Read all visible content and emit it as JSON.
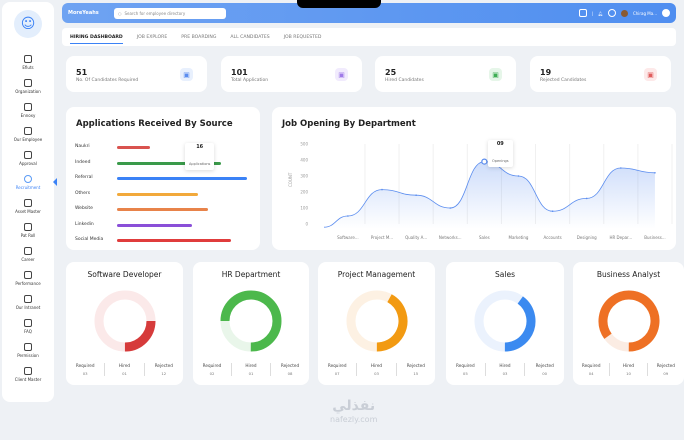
{
  "header": {
    "brand": "MoreYeahs",
    "search_placeholder": "Search for employee directory",
    "user": "Chirag Ma..."
  },
  "sidebar": [
    {
      "label": "Efiuts"
    },
    {
      "label": "Organization"
    },
    {
      "label": "Ennoxy"
    },
    {
      "label": "Our Employee"
    },
    {
      "label": "Approval"
    },
    {
      "label": "Recruitment",
      "active": true
    },
    {
      "label": "Asset Master"
    },
    {
      "label": "Pat Roll"
    },
    {
      "label": "Career"
    },
    {
      "label": "Performance"
    },
    {
      "label": "Our Intranet"
    },
    {
      "label": "FAQ"
    },
    {
      "label": "Permission"
    },
    {
      "label": "Client Master"
    }
  ],
  "tabs": [
    {
      "label": "HIRING DASHBOARD",
      "active": true
    },
    {
      "label": "JOB EXPLORE"
    },
    {
      "label": "PRE BOARDING"
    },
    {
      "label": "ALL CANDIDATES"
    },
    {
      "label": "JOB REQUESTED"
    }
  ],
  "stats": [
    {
      "value": "51",
      "label": "No. Of Candidates Required",
      "color": "#5b8def",
      "bg": "#e8f0fd"
    },
    {
      "value": "101",
      "label": "Total Application",
      "color": "#a07be8",
      "bg": "#f1ebfd"
    },
    {
      "value": "25",
      "label": "Hired Candidates",
      "color": "#3fae55",
      "bg": "#e6f6e9"
    },
    {
      "value": "19",
      "label": "Rejected Candidates",
      "color": "#e05d5d",
      "bg": "#fde9e9"
    }
  ],
  "sources": {
    "title": "Applications Received By Source",
    "max": 20,
    "tooltip": {
      "value": "16",
      "label": "Applications"
    },
    "items": [
      {
        "label": "Naukri",
        "value": 5,
        "color": "#d9534f"
      },
      {
        "label": "Indeed",
        "value": 16,
        "color": "#3a9a4a"
      },
      {
        "label": "Referral",
        "value": 20,
        "color": "#3b82f6"
      },
      {
        "label": "Others",
        "value": 12.5,
        "color": "#f2a93b"
      },
      {
        "label": "Website",
        "value": 14,
        "color": "#e8834a"
      },
      {
        "label": "Linkedin",
        "value": 11.5,
        "color": "#8a4fd8"
      },
      {
        "label": "Social Media",
        "value": 17.5,
        "color": "#e03c3c"
      }
    ]
  },
  "chart_data": {
    "type": "area",
    "title": "Job Opening By Department",
    "ylabel": "COUNT",
    "ylim": [
      0,
      500
    ],
    "yticks": [
      "500",
      "400",
      "300",
      "200",
      "100",
      "0"
    ],
    "categories": [
      "Software...",
      "Project M...",
      "Quality A...",
      "Networks...",
      "Sales",
      "Marketing",
      "Accounts",
      "Designing",
      "HR Depar...",
      "Business..."
    ],
    "values": [
      50,
      215,
      180,
      100,
      390,
      300,
      80,
      160,
      350,
      320
    ],
    "tooltip": {
      "value": "09",
      "label": "Openings"
    },
    "color": "#5b8def"
  },
  "departments": [
    {
      "title": "Software Developer",
      "fraction": 0.25,
      "color": "#d63b3b",
      "track": "#fbe9e9",
      "required": "03",
      "hired": "01",
      "rejected": "12"
    },
    {
      "title": "HR Department",
      "fraction": 0.75,
      "color": "#4cb84c",
      "track": "#e9f6ea",
      "required": "02",
      "hired": "01",
      "rejected": "08"
    },
    {
      "title": "Project Management",
      "fraction": 0.42,
      "color": "#f29a12",
      "track": "#fdf1e3",
      "required": "07",
      "hired": "03",
      "rejected": "15"
    },
    {
      "title": "Sales",
      "fraction": 0.4,
      "color": "#3b8af0",
      "track": "#ebf2fd",
      "required": "05",
      "hired": "03",
      "rejected": "00"
    },
    {
      "title": "Business Analyst",
      "fraction": 0.85,
      "color": "#ee7024",
      "track": "#fbece3",
      "required": "04",
      "hired": "10",
      "rejected": "09"
    }
  ],
  "labels": {
    "required": "Required",
    "hired": "Hired",
    "rejected": "Rejected"
  },
  "watermark": {
    "arabic": "نفذلي",
    "latin": "nafezly.com"
  }
}
